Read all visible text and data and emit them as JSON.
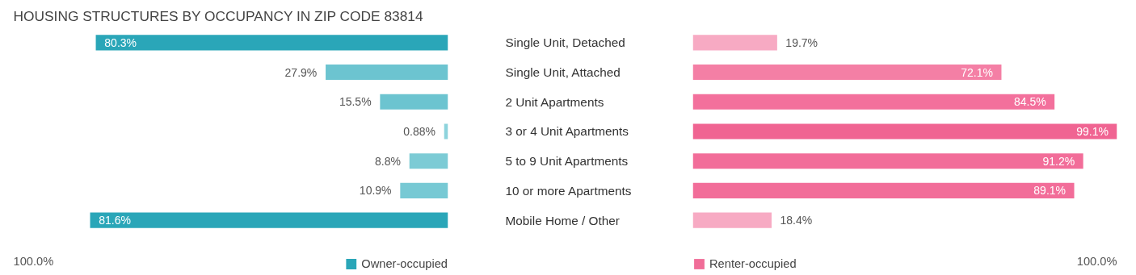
{
  "chart_data": [
    {
      "type": "bar",
      "orientation": "horizontal",
      "title": "HOUSING STRUCTURES BY OCCUPANCY IN ZIP CODE 83814",
      "categories": [
        "Single Unit, Detached",
        "Single Unit, Attached",
        "2 Unit Apartments",
        "3 or 4 Unit Apartments",
        "5 to 9 Unit Apartments",
        "10 or more Apartments",
        "Mobile Home / Other"
      ],
      "series": [
        {
          "name": "Owner-occupied",
          "color": "#2aa6b8",
          "colors": [
            "#2aa6b8",
            "#6cc4d0",
            "#6cc4d0",
            "#8dd3dc",
            "#7ccbd5",
            "#77c9d4",
            "#2aa6b8"
          ],
          "values": [
            80.3,
            27.9,
            15.5,
            0.88,
            8.8,
            10.9,
            81.6
          ],
          "value_labels": [
            "80.3%",
            "27.9%",
            "15.5%",
            "0.88%",
            "8.8%",
            "10.9%",
            "81.6%"
          ]
        }
      ],
      "annotations": [
        "100.0%"
      ],
      "legend": "bottom right",
      "tick_labels": "y"
    },
    {
      "type": "bar",
      "orientation": "horizontal",
      "categories": [
        null,
        null,
        null,
        null,
        null,
        null,
        null
      ],
      "series": [
        {
          "name": "Renter-occupied",
          "color": "#f06d98",
          "colors": [
            "#f7aac3",
            "#f47fa5",
            "#f3709c",
            "#f06492",
            "#f26d99",
            "#f26d99",
            "#f7aac3"
          ],
          "values": [
            19.7,
            72.1,
            84.5,
            99.1,
            91.2,
            89.1,
            18.4
          ],
          "value_labels": [
            "19.7%",
            "72.1%",
            "84.5%",
            "99.1%",
            "91.2%",
            "89.1%",
            "18.4%"
          ]
        }
      ],
      "annotations": [
        "100.0%"
      ],
      "legend": "bottom left",
      "tick_labels": false
    }
  ]
}
